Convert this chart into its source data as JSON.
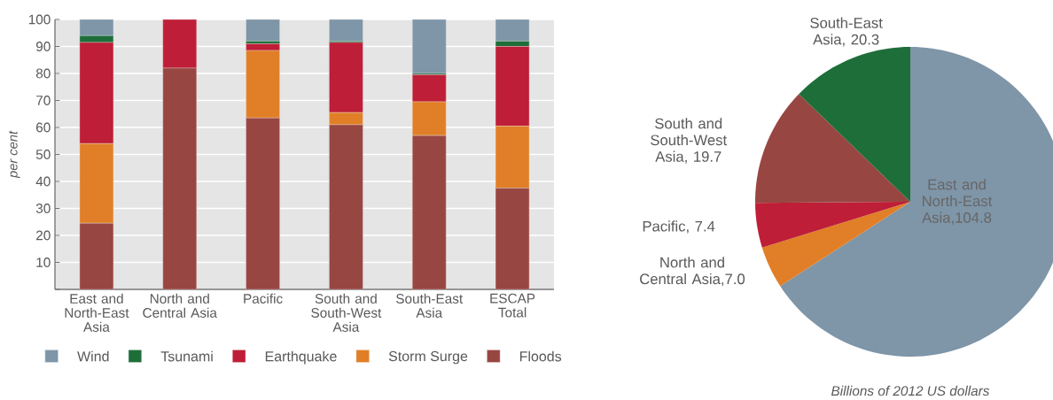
{
  "chart_data": [
    {
      "type": "bar",
      "stacked": true,
      "ylabel": "per cent",
      "grid": "y",
      "legend": "bottom",
      "categories": [
        "East and North-East Asia",
        "North and Central Asia",
        "Pacific",
        "South and South-West Asia",
        "South-East Asia",
        "ESCAP Total"
      ],
      "ylim": [
        0,
        100
      ],
      "yticks": [
        {
          "value": 0,
          "label": null
        },
        10,
        20,
        30,
        40,
        50,
        60,
        70,
        80,
        90,
        100
      ],
      "series": [
        {
          "name": "Floods",
          "color": "#984642",
          "values": [
            24.5,
            82,
            63.5,
            61,
            57,
            37.5
          ]
        },
        {
          "name": "Storm Surge",
          "color": "#e07f27",
          "values": [
            29.5,
            0,
            25,
            4.5,
            12.5,
            23
          ]
        },
        {
          "name": "Earthquake",
          "color": "#be1e37",
          "values": [
            37.5,
            18,
            2.5,
            26,
            10,
            29.5
          ]
        },
        {
          "name": "Tsunami",
          "color": "#1e6e3a",
          "values": [
            2.5,
            0,
            1,
            0.5,
            0.5,
            2
          ]
        },
        {
          "name": "Wind",
          "color": "#7f95a8",
          "values": [
            6,
            0,
            8,
            8,
            20,
            8
          ]
        }
      ]
    },
    {
      "type": "pie",
      "data_labels": true,
      "categories": [
        "East and North-East Asia",
        "North and Central Asia",
        "Pacific",
        "South and South-West Asia",
        "South-East Asia"
      ],
      "values": [
        104.8,
        7.0,
        7.4,
        19.7,
        20.3
      ],
      "value_labels": [
        ",104.8",
        ",7.0",
        ", 7.4",
        ", 19.7",
        ", 20.3"
      ],
      "colors": [
        "#7f95a8",
        "#e07f27",
        "#be1e37",
        "#984642",
        "#1e6e3a"
      ],
      "annotations": [
        "Billions of 2012 US dollars"
      ]
    }
  ]
}
